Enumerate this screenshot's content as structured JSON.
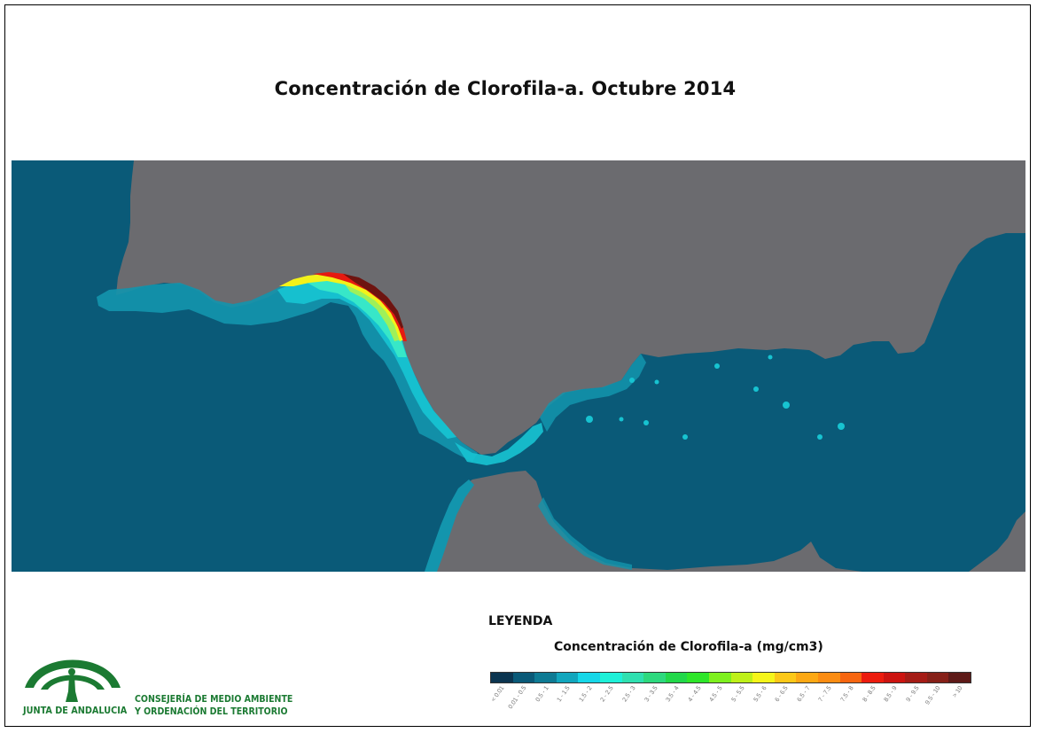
{
  "title": "Concentración de Clorofila-a. Octubre 2014",
  "map": {
    "sea_color": "#0a5a78",
    "land_color": "#6b6b6f",
    "coast_colors": [
      "#1395ad",
      "#17c3d1",
      "#37e7c8",
      "#9ef05a",
      "#f2f21a",
      "#ff8a00",
      "#e61a10",
      "#6e1410"
    ]
  },
  "legend": {
    "title": "LEYENDA",
    "subtitle": "Concentración de Clorofila-a (mg/cm3)",
    "classes": [
      {
        "label": "< 0.01",
        "color": "#0b3550"
      },
      {
        "label": "0.01 - 0.5",
        "color": "#0a5a78"
      },
      {
        "label": "0.5 - 1",
        "color": "#0e7b94"
      },
      {
        "label": "1 - 1.5",
        "color": "#12a6bd"
      },
      {
        "label": "1.5 - 2",
        "color": "#16d7e8"
      },
      {
        "label": "2 - 2.5",
        "color": "#1ef0d8"
      },
      {
        "label": "2.5 - 3",
        "color": "#2fe0b0"
      },
      {
        "label": "3 - 3.5",
        "color": "#2dd97e"
      },
      {
        "label": "3.5 - 4",
        "color": "#22d84a"
      },
      {
        "label": "4 - 4.5",
        "color": "#2ee62a"
      },
      {
        "label": "4.5 - 5",
        "color": "#7ef01e"
      },
      {
        "label": "5 - 5.5",
        "color": "#bef019"
      },
      {
        "label": "5.5 - 6",
        "color": "#f5f51a"
      },
      {
        "label": "6 - 6.5",
        "color": "#fcc818"
      },
      {
        "label": "6.5 - 7",
        "color": "#fca814"
      },
      {
        "label": "7 - 7.5",
        "color": "#fb8c12"
      },
      {
        "label": "7.5 - 8",
        "color": "#f76610"
      },
      {
        "label": "8 - 8.5",
        "color": "#ec1c0e"
      },
      {
        "label": "8.5 - 9",
        "color": "#cc1410"
      },
      {
        "label": "9 - 9.5",
        "color": "#a51c16"
      },
      {
        "label": "9.5 - 10",
        "color": "#862018"
      },
      {
        "label": "> 10",
        "color": "#5e1a18"
      }
    ]
  },
  "logo": {
    "name": "JUNTA DE ANDALUCIA",
    "department_line1": "CONSEJERÍA DE MEDIO AMBIENTE",
    "department_line2": "Y ORDENACIÓN DEL TERRITORIO",
    "color": "#1b7a32"
  }
}
